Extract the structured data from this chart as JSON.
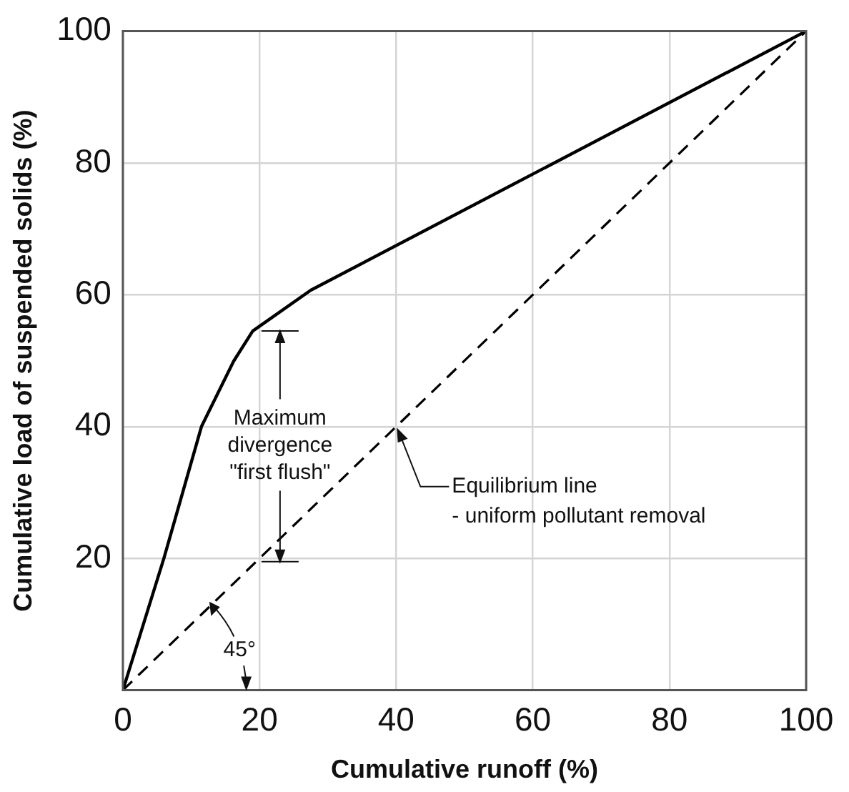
{
  "chart_data": {
    "type": "line",
    "xlabel": "Cumulative runoff (%)",
    "ylabel": "Cumulative load of suspended solids (%)",
    "xlim": [
      0,
      100
    ],
    "xticks": [
      0,
      20,
      40,
      60,
      80,
      100
    ],
    "ylim": [
      0,
      100
    ],
    "yticks": [
      20,
      40,
      60,
      80,
      100
    ],
    "grid": true,
    "legend": false,
    "marker": "none",
    "series": [
      {
        "color": "#000000",
        "line_style": "solid",
        "x": [
          0,
          6,
          11.5,
          16.2,
          19,
          27.5,
          100
        ],
        "values": [
          0,
          20,
          40,
          49.9,
          54.5,
          60.7,
          100
        ]
      },
      {
        "color": "#000000",
        "line_style": "dashed",
        "x": [
          0,
          100
        ],
        "values": [
          0,
          100
        ]
      }
    ],
    "annotations": [
      "Maximum\ndivergence\n\"first flush\"",
      {
        "text": "Equilibrium line\n- uniform pollutant removal",
        "x": 40,
        "y": 40
      },
      {
        "text": "45°",
        "x": 13,
        "y": 13
      }
    ]
  }
}
